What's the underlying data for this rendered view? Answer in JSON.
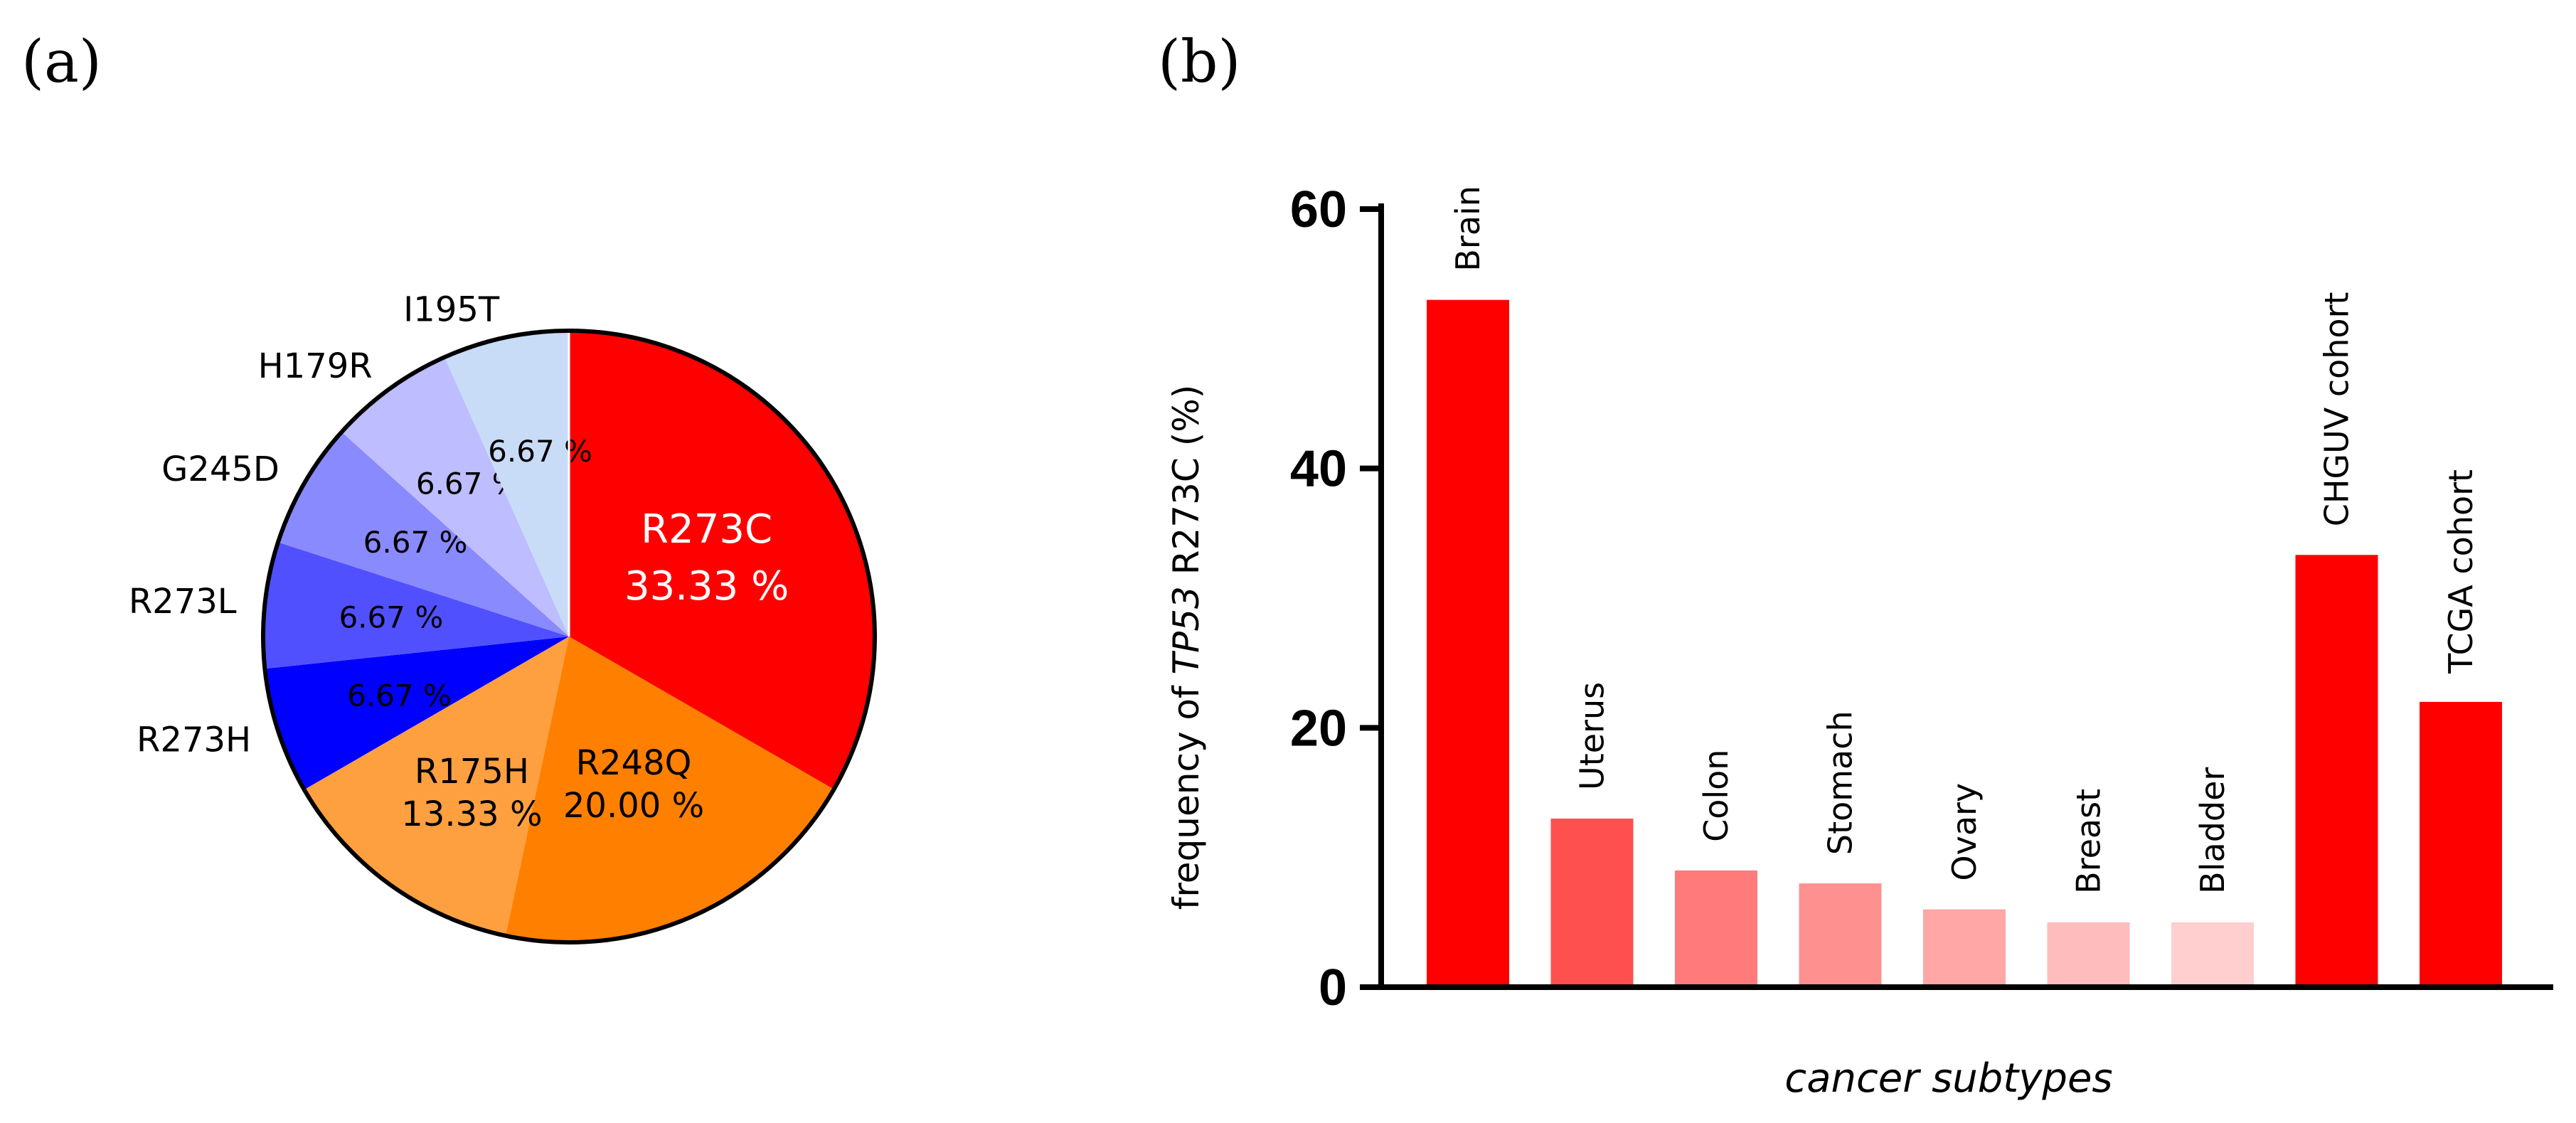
{
  "panels": {
    "a_label": "(a)",
    "b_label": "(b)"
  },
  "chart_data": [
    {
      "type": "pie",
      "slices": [
        {
          "name": "R273C",
          "value": 33.33,
          "label": "33.33 %",
          "color": "#ff0000"
        },
        {
          "name": "R248Q",
          "value": 20.0,
          "label": "20.00 %",
          "color": "#ff8000"
        },
        {
          "name": "R175H",
          "value": 13.33,
          "label": "13.33 %",
          "color": "#ffa040"
        },
        {
          "name": "R273H",
          "value": 6.67,
          "label": "6.67 %",
          "color": "#0000ff"
        },
        {
          "name": "R273L",
          "value": 6.67,
          "label": "6.67 %",
          "color": "#5050ff"
        },
        {
          "name": "G245D",
          "value": 6.67,
          "label": "6.67 %",
          "color": "#8a8aff"
        },
        {
          "name": "H179R",
          "value": 6.67,
          "label": "6.67 %",
          "color": "#bdbdff"
        },
        {
          "name": "I195T",
          "value": 6.67,
          "label": "6.67 %",
          "color": "#c8dcf8"
        }
      ]
    },
    {
      "type": "bar",
      "categories": [
        "Brain",
        "Uterus",
        "Colon",
        "Stomach",
        "Ovary",
        "Breast",
        "Bladder",
        "CHGUV cohort",
        "TCGA cohort"
      ],
      "values": [
        53,
        13,
        9,
        8,
        6,
        5,
        5,
        33.33,
        22
      ],
      "colors": [
        "#ff0000",
        "#ff5050",
        "#ff7a7a",
        "#ff9090",
        "#ffa6a6",
        "#ffbcbc",
        "#ffcece",
        "#ff0000",
        "#ff0000"
      ],
      "ylabel_prefix": "frequency of ",
      "ylabel_gene": "TP53",
      "ylabel_suffix": " R273C (%)",
      "xlabel": "cancer subtypes",
      "ylim": [
        0,
        60
      ],
      "yticks": [
        0,
        20,
        40,
        60
      ]
    }
  ]
}
